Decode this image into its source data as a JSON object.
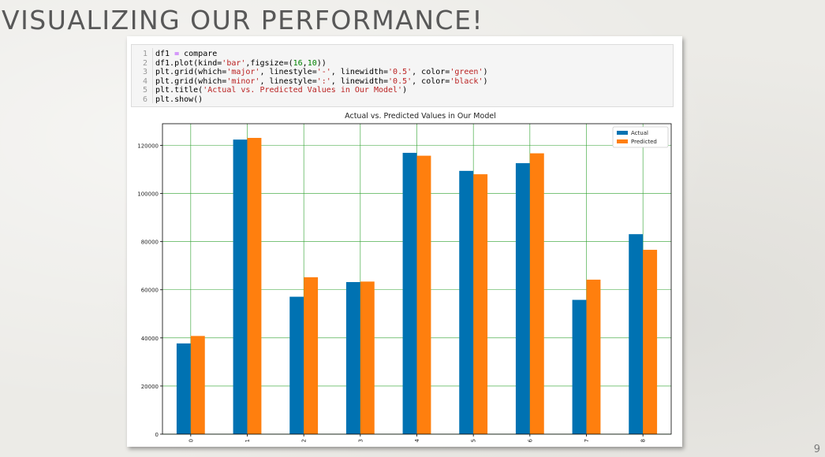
{
  "slide": {
    "title": "VISUALIZING OUR PERFORMANCE!",
    "page_number": "9"
  },
  "code": {
    "lines": [
      [
        {
          "t": "df1 ",
          "c": "name"
        },
        {
          "t": "=",
          "c": "op"
        },
        {
          "t": " compare",
          "c": "name"
        }
      ],
      [
        {
          "t": "df1.plot(kind=",
          "c": "name"
        },
        {
          "t": "'bar'",
          "c": "str"
        },
        {
          "t": ",figsize=(",
          "c": "name"
        },
        {
          "t": "16",
          "c": "num"
        },
        {
          "t": ",",
          "c": "name"
        },
        {
          "t": "10",
          "c": "num"
        },
        {
          "t": "))",
          "c": "name"
        }
      ],
      [
        {
          "t": "plt.grid(which=",
          "c": "name"
        },
        {
          "t": "'major'",
          "c": "str"
        },
        {
          "t": ", linestyle=",
          "c": "name"
        },
        {
          "t": "'-'",
          "c": "str"
        },
        {
          "t": ", linewidth=",
          "c": "name"
        },
        {
          "t": "'0.5'",
          "c": "str"
        },
        {
          "t": ", color=",
          "c": "name"
        },
        {
          "t": "'green'",
          "c": "str"
        },
        {
          "t": ")",
          "c": "name"
        }
      ],
      [
        {
          "t": "plt.grid(which=",
          "c": "name"
        },
        {
          "t": "'minor'",
          "c": "str"
        },
        {
          "t": ", linestyle=",
          "c": "name"
        },
        {
          "t": "':'",
          "c": "str"
        },
        {
          "t": ", linewidth=",
          "c": "name"
        },
        {
          "t": "'0.5'",
          "c": "str"
        },
        {
          "t": ", color=",
          "c": "name"
        },
        {
          "t": "'black'",
          "c": "str"
        },
        {
          "t": ")",
          "c": "name"
        }
      ],
      [
        {
          "t": "plt.title(",
          "c": "name"
        },
        {
          "t": "'Actual vs. Predicted Values in Our Model'",
          "c": "str"
        },
        {
          "t": ")",
          "c": "name"
        }
      ],
      [
        {
          "t": "plt.show()",
          "c": "name"
        }
      ]
    ]
  },
  "chart_data": {
    "type": "bar",
    "title": "Actual vs. Predicted Values in Our Model",
    "xlabel": "",
    "ylabel": "",
    "categories": [
      "0",
      "1",
      "2",
      "3",
      "4",
      "5",
      "6",
      "7",
      "8"
    ],
    "series": [
      {
        "name": "Actual",
        "color": "#0072b2",
        "values": [
          37700,
          122400,
          57100,
          63200,
          116900,
          109400,
          112600,
          55800,
          83100
        ]
      },
      {
        "name": "Predicted",
        "color": "#ff7f0e",
        "values": [
          40800,
          123100,
          65200,
          63400,
          115700,
          108000,
          116700,
          64200,
          76600
        ]
      }
    ],
    "ylim": [
      0,
      129000
    ],
    "yticks": [
      0,
      20000,
      40000,
      60000,
      80000,
      100000,
      120000
    ],
    "grid": true,
    "grid_color": "#2ca02c",
    "legend_position": "top-right"
  }
}
